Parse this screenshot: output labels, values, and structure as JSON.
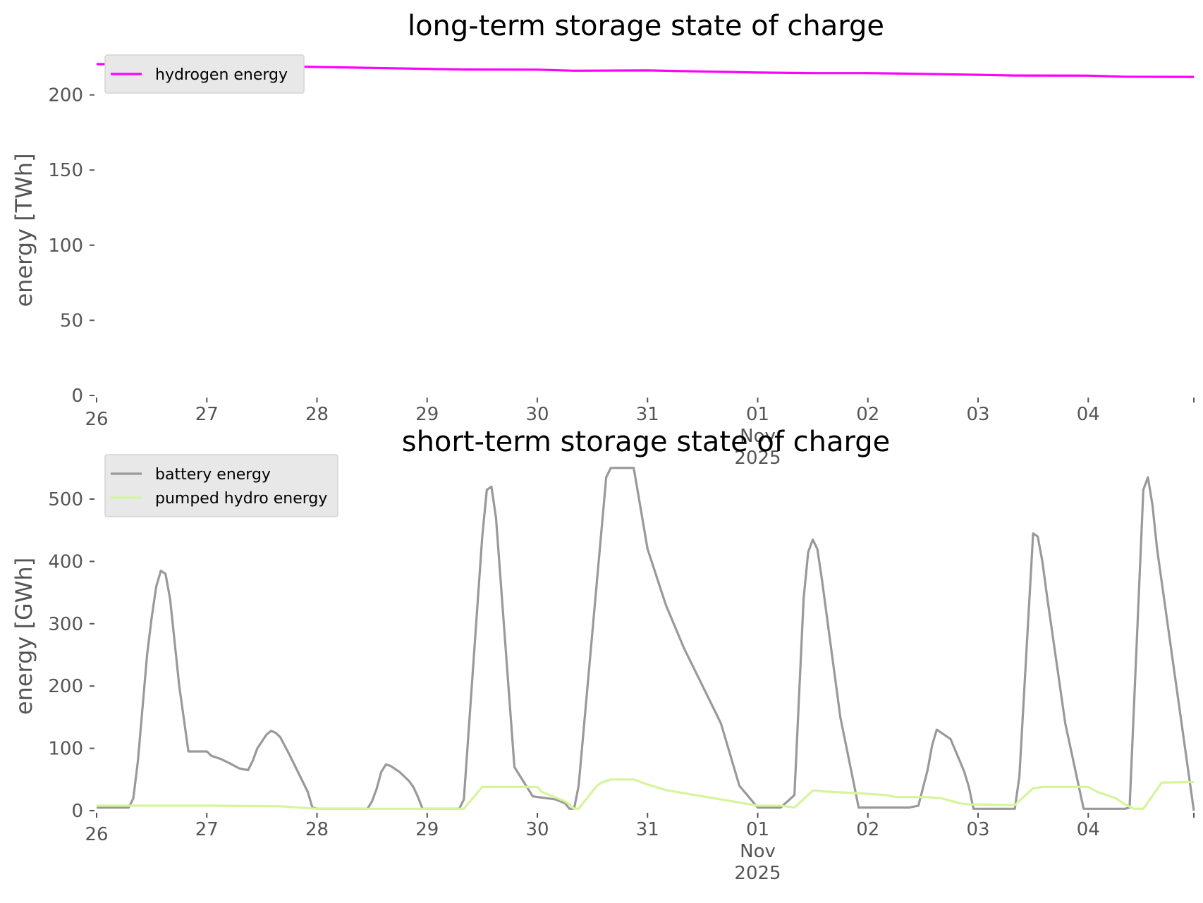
{
  "chart_data": [
    {
      "type": "line",
      "title": "long-term storage state of charge",
      "xlabel": "",
      "ylabel": "energy [TWh]",
      "ylim": [
        0,
        220
      ],
      "yticks": [
        "0",
        "50",
        "100",
        "150",
        "200"
      ],
      "xlim": [
        "2025-10-26T00:00",
        "2025-11-04T23:00"
      ],
      "xtick_labels": [
        "26",
        "27",
        "28",
        "29",
        "30",
        "31",
        "01",
        "02",
        "03",
        "04"
      ],
      "xtick_sub_labels": [
        "Nov",
        "2025"
      ],
      "grid": false,
      "legend": "top-left",
      "series": [
        {
          "name": "hydrogen energy",
          "color": "#ff00ff",
          "x": [
            "2025-10-26T00:00",
            "2025-10-27T00:00",
            "2025-10-28T00:00",
            "2025-10-28T12:00",
            "2025-10-29T08:00",
            "2025-10-30T00:00",
            "2025-10-30T08:00",
            "2025-10-31T00:00",
            "2025-11-01T00:00",
            "2025-11-01T12:00",
            "2025-11-02T00:00",
            "2025-11-02T12:00",
            "2025-11-03T00:00",
            "2025-11-03T08:00",
            "2025-11-04T00:00",
            "2025-11-04T08:00",
            "2025-11-04T23:00"
          ],
          "y": [
            220.5,
            219.8,
            218.6,
            218.0,
            216.9,
            216.8,
            216.1,
            216.3,
            214.9,
            214.5,
            214.5,
            214.0,
            213.4,
            212.9,
            212.8,
            212.1,
            212.0
          ]
        }
      ]
    },
    {
      "type": "line",
      "title": "short-term storage state of charge",
      "xlabel": "",
      "ylabel": "energy [GWh]",
      "ylim": [
        0,
        560
      ],
      "yticks": [
        "0",
        "100",
        "200",
        "300",
        "400",
        "500"
      ],
      "xlim": [
        "2025-10-26T00:00",
        "2025-11-04T23:00"
      ],
      "xtick_labels": [
        "26",
        "27",
        "28",
        "29",
        "30",
        "31",
        "01",
        "02",
        "03",
        "04"
      ],
      "xtick_sub_labels": [
        "Nov",
        "2025"
      ],
      "grid": false,
      "legend": "top-left",
      "series": [
        {
          "name": "battery energy",
          "color": "#999999",
          "x": [
            "2025-10-26T00:00",
            "2025-10-26T07:00",
            "2025-10-26T08:00",
            "2025-10-26T09:00",
            "2025-10-26T11:00",
            "2025-10-26T12:00",
            "2025-10-26T13:00",
            "2025-10-26T14:00",
            "2025-10-26T15:00",
            "2025-10-26T16:00",
            "2025-10-26T18:00",
            "2025-10-26T20:00",
            "2025-10-27T00:00",
            "2025-10-27T01:00",
            "2025-10-27T03:00",
            "2025-10-27T05:00",
            "2025-10-27T07:00",
            "2025-10-27T09:00",
            "2025-10-27T10:00",
            "2025-10-27T11:00",
            "2025-10-27T13:00",
            "2025-10-27T14:00",
            "2025-10-27T15:00",
            "2025-10-27T16:00",
            "2025-10-27T18:00",
            "2025-10-27T20:00",
            "2025-10-27T22:00",
            "2025-10-27T23:00",
            "2025-10-28T00:00",
            "2025-10-28T11:00",
            "2025-10-28T12:00",
            "2025-10-28T13:00",
            "2025-10-28T14:00",
            "2025-10-28T15:00",
            "2025-10-28T16:00",
            "2025-10-28T18:00",
            "2025-10-28T20:00",
            "2025-10-28T21:00",
            "2025-10-28T22:00",
            "2025-10-28T23:00",
            "2025-10-29T00:00",
            "2025-10-29T07:00",
            "2025-10-29T08:00",
            "2025-10-29T12:00",
            "2025-10-29T13:00",
            "2025-10-29T14:00",
            "2025-10-29T15:00",
            "2025-10-29T19:00",
            "2025-10-29T23:00",
            "2025-10-30T00:00",
            "2025-10-30T04:00",
            "2025-10-30T06:00",
            "2025-10-30T07:00",
            "2025-10-30T08:00",
            "2025-10-30T09:00",
            "2025-10-30T15:00",
            "2025-10-30T16:00",
            "2025-10-30T20:00",
            "2025-10-30T21:00",
            "2025-10-31T00:00",
            "2025-10-31T04:00",
            "2025-10-31T08:00",
            "2025-10-31T12:00",
            "2025-10-31T16:00",
            "2025-10-31T20:00",
            "2025-11-01T00:00",
            "2025-11-01T02:00",
            "2025-11-01T03:00",
            "2025-11-01T04:00",
            "2025-11-01T05:00",
            "2025-11-01T08:00",
            "2025-11-01T10:00",
            "2025-11-01T11:00",
            "2025-11-01T12:00",
            "2025-11-01T13:00",
            "2025-11-01T14:00",
            "2025-11-01T18:00",
            "2025-11-01T22:00",
            "2025-11-02T00:00",
            "2025-11-02T08:00",
            "2025-11-02T09:00",
            "2025-11-02T11:00",
            "2025-11-02T13:00",
            "2025-11-02T14:00",
            "2025-11-02T15:00",
            "2025-11-02T18:00",
            "2025-11-02T20:00",
            "2025-11-02T21:00",
            "2025-11-02T22:00",
            "2025-11-02T23:00",
            "2025-11-03T00:00",
            "2025-11-03T08:00",
            "2025-11-03T09:00",
            "2025-11-03T12:00",
            "2025-11-03T13:00",
            "2025-11-03T14:00",
            "2025-11-03T15:00",
            "2025-11-03T19:00",
            "2025-11-03T23:00",
            "2025-11-04T00:00",
            "2025-11-04T08:00",
            "2025-11-04T09:00",
            "2025-11-04T12:00",
            "2025-11-04T13:00",
            "2025-11-04T14:00",
            "2025-11-04T15:00",
            "2025-11-04T23:00"
          ],
          "y": [
            5,
            5,
            20,
            80,
            250,
            310,
            360,
            385,
            380,
            340,
            200,
            95,
            95,
            88,
            83,
            76,
            68,
            65,
            80,
            100,
            122,
            128,
            125,
            118,
            90,
            60,
            30,
            5,
            3,
            3,
            15,
            35,
            62,
            74,
            72,
            62,
            48,
            38,
            22,
            3,
            3,
            3,
            18,
            440,
            515,
            520,
            470,
            70,
            23,
            22,
            18,
            12,
            3,
            3,
            40,
            535,
            550,
            550,
            550,
            420,
            330,
            260,
            200,
            140,
            40,
            5,
            5,
            5,
            5,
            5,
            25,
            340,
            415,
            435,
            420,
            370,
            150,
            5,
            5,
            5,
            5,
            8,
            65,
            105,
            130,
            115,
            80,
            62,
            38,
            3,
            3,
            3,
            55,
            445,
            440,
            400,
            345,
            140,
            3,
            3,
            3,
            5,
            515,
            535,
            490,
            420,
            0
          ]
        },
        {
          "name": "pumped hydro energy",
          "color": "#d4f59a",
          "x": [
            "2025-10-26T00:00",
            "2025-10-27T00:00",
            "2025-10-27T16:00",
            "2025-10-28T00:00",
            "2025-10-29T00:00",
            "2025-10-29T08:00",
            "2025-10-29T12:00",
            "2025-10-30T00:00",
            "2025-10-30T01:00",
            "2025-10-30T06:00",
            "2025-10-30T07:00",
            "2025-10-30T08:00",
            "2025-10-30T09:00",
            "2025-10-30T13:00",
            "2025-10-30T14:00",
            "2025-10-30T16:00",
            "2025-10-30T20:00",
            "2025-10-30T21:00",
            "2025-10-31T00:00",
            "2025-10-31T04:00",
            "2025-10-31T08:00",
            "2025-10-31T12:00",
            "2025-10-31T16:00",
            "2025-10-31T20:00",
            "2025-11-01T00:00",
            "2025-11-01T05:00",
            "2025-11-01T08:00",
            "2025-11-01T12:00",
            "2025-11-01T13:00",
            "2025-11-01T14:00",
            "2025-11-01T22:00",
            "2025-11-02T00:00",
            "2025-11-02T04:00",
            "2025-11-02T06:00",
            "2025-11-02T12:00",
            "2025-11-02T16:00",
            "2025-11-02T18:00",
            "2025-11-02T20:00",
            "2025-11-02T22:00",
            "2025-11-03T00:00",
            "2025-11-03T08:00",
            "2025-11-03T12:00",
            "2025-11-03T14:00",
            "2025-11-03T20:00",
            "2025-11-04T00:00",
            "2025-11-04T02:00",
            "2025-11-04T06:00",
            "2025-11-04T08:00",
            "2025-11-04T10:00",
            "2025-11-04T12:00",
            "2025-11-04T16:00",
            "2025-11-04T23:00"
          ],
          "y": [
            8,
            8,
            7,
            3,
            3,
            3,
            38,
            38,
            30,
            15,
            10,
            3,
            3,
            40,
            45,
            50,
            50,
            50,
            42,
            33,
            28,
            23,
            18,
            13,
            8,
            8,
            5,
            32,
            32,
            31,
            28,
            27,
            25,
            22,
            22,
            20,
            16,
            12,
            10,
            10,
            9,
            36,
            38,
            38,
            38,
            30,
            20,
            10,
            3,
            3,
            45,
            46
          ]
        }
      ]
    }
  ]
}
